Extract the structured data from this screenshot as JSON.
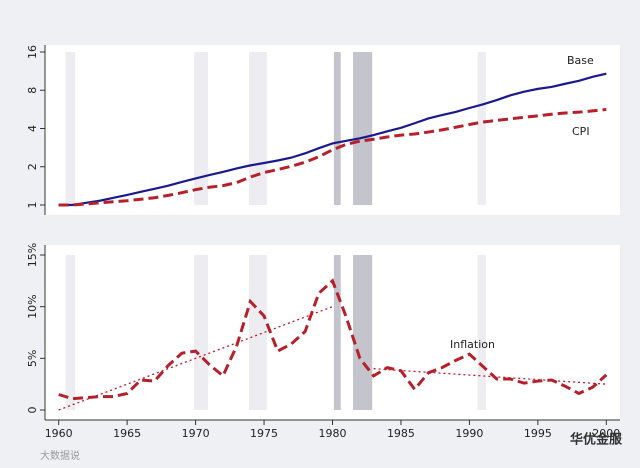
{
  "chart_data": [
    {
      "type": "line",
      "log_scale": true,
      "x": [
        1960,
        1961,
        1962,
        1963,
        1964,
        1965,
        1966,
        1967,
        1968,
        1969,
        1970,
        1971,
        1972,
        1973,
        1974,
        1975,
        1976,
        1977,
        1978,
        1979,
        1980,
        1981,
        1982,
        1983,
        1984,
        1985,
        1986,
        1987,
        1988,
        1989,
        1990,
        1991,
        1992,
        1993,
        1994,
        1995,
        1996,
        1997,
        1998,
        1999,
        2000
      ],
      "xlim": [
        1959,
        2001
      ],
      "ylim": [
        1,
        16
      ],
      "yticks": [
        1,
        2,
        4,
        8,
        16
      ],
      "shaded_periods": [
        {
          "x": [
            1960.5,
            1961.2
          ],
          "color": "#ececf1"
        },
        {
          "x": [
            1969.9,
            1970.9
          ],
          "color": "#ececf1"
        },
        {
          "x": [
            1973.9,
            1975.2
          ],
          "color": "#ececf1"
        },
        {
          "x": [
            1980.1,
            1980.6
          ],
          "color": "#c4c4cc"
        },
        {
          "x": [
            1981.5,
            1982.9
          ],
          "color": "#c4c4cc"
        },
        {
          "x": [
            1990.6,
            1991.2
          ],
          "color": "#ececf1"
        }
      ],
      "series": [
        {
          "name": "Base",
          "color": "#1a1a8c",
          "dash": false,
          "values": [
            1.0,
            1.0,
            1.04,
            1.08,
            1.14,
            1.2,
            1.27,
            1.34,
            1.42,
            1.52,
            1.62,
            1.72,
            1.82,
            1.94,
            2.05,
            2.14,
            2.24,
            2.36,
            2.55,
            2.8,
            3.05,
            3.2,
            3.35,
            3.55,
            3.8,
            4.05,
            4.4,
            4.8,
            5.1,
            5.4,
            5.8,
            6.2,
            6.7,
            7.3,
            7.8,
            8.2,
            8.5,
            9.0,
            9.5,
            10.2,
            10.8
          ]
        },
        {
          "name": "CPI",
          "color": "#b5202a",
          "dash": true,
          "values": [
            1.0,
            1.0,
            1.02,
            1.04,
            1.06,
            1.08,
            1.11,
            1.14,
            1.19,
            1.25,
            1.32,
            1.38,
            1.42,
            1.5,
            1.66,
            1.8,
            1.9,
            2.02,
            2.17,
            2.4,
            2.72,
            3.0,
            3.18,
            3.29,
            3.43,
            3.55,
            3.62,
            3.75,
            3.9,
            4.09,
            4.3,
            4.5,
            4.63,
            4.77,
            4.9,
            5.03,
            5.18,
            5.3,
            5.38,
            5.5,
            5.65
          ]
        }
      ]
    },
    {
      "type": "line",
      "log_scale": false,
      "x": [
        1960,
        1961,
        1962,
        1963,
        1964,
        1965,
        1966,
        1967,
        1968,
        1969,
        1970,
        1971,
        1972,
        1973,
        1974,
        1975,
        1976,
        1977,
        1978,
        1979,
        1980,
        1981,
        1982,
        1983,
        1984,
        1985,
        1986,
        1987,
        1988,
        1989,
        1990,
        1991,
        1992,
        1993,
        1994,
        1995,
        1996,
        1997,
        1998,
        1999,
        2000
      ],
      "xlim": [
        1959,
        2001
      ],
      "xticks": [
        1960,
        1965,
        1970,
        1975,
        1980,
        1985,
        1990,
        1995,
        2000
      ],
      "ylim": [
        0,
        15
      ],
      "yticks": [
        0,
        {
          "value": 5,
          "label": "5%"
        },
        {
          "value": 10,
          "label": "10%"
        },
        {
          "value": 15,
          "label": "15%"
        }
      ],
      "shaded_periods": [
        {
          "x": [
            1960.5,
            1961.2
          ],
          "color": "#ececf1"
        },
        {
          "x": [
            1969.9,
            1970.9
          ],
          "color": "#ececf1"
        },
        {
          "x": [
            1973.9,
            1975.2
          ],
          "color": "#ececf1"
        },
        {
          "x": [
            1980.1,
            1980.6
          ],
          "color": "#c4c4cc"
        },
        {
          "x": [
            1981.5,
            1982.9
          ],
          "color": "#c4c4cc"
        },
        {
          "x": [
            1990.6,
            1991.2
          ],
          "color": "#ececf1"
        }
      ],
      "series": [
        {
          "name": "Inflation",
          "color": "#b5202a",
          "dash": true,
          "values": [
            1.5,
            1.1,
            1.2,
            1.3,
            1.3,
            1.6,
            2.9,
            2.8,
            4.3,
            5.5,
            5.7,
            4.4,
            3.3,
            6.2,
            10.5,
            9.1,
            5.7,
            6.4,
            7.6,
            11.3,
            12.5,
            9.0,
            5.0,
            3.3,
            4.1,
            3.8,
            2.0,
            3.6,
            4.1,
            4.8,
            5.4,
            4.2,
            3.0,
            3.0,
            2.6,
            2.8,
            2.9,
            2.3,
            1.6,
            2.2,
            3.4
          ]
        }
      ],
      "trend_lines": [
        {
          "color": "#b5202a",
          "x": [
            1960,
            1980
          ],
          "values": [
            0,
            10
          ]
        },
        {
          "color": "#b5202a",
          "x": [
            1983,
            2000
          ],
          "values": [
            4,
            2.5
          ]
        }
      ]
    }
  ],
  "watermarks": [
    "大数据说",
    "华优金服"
  ]
}
